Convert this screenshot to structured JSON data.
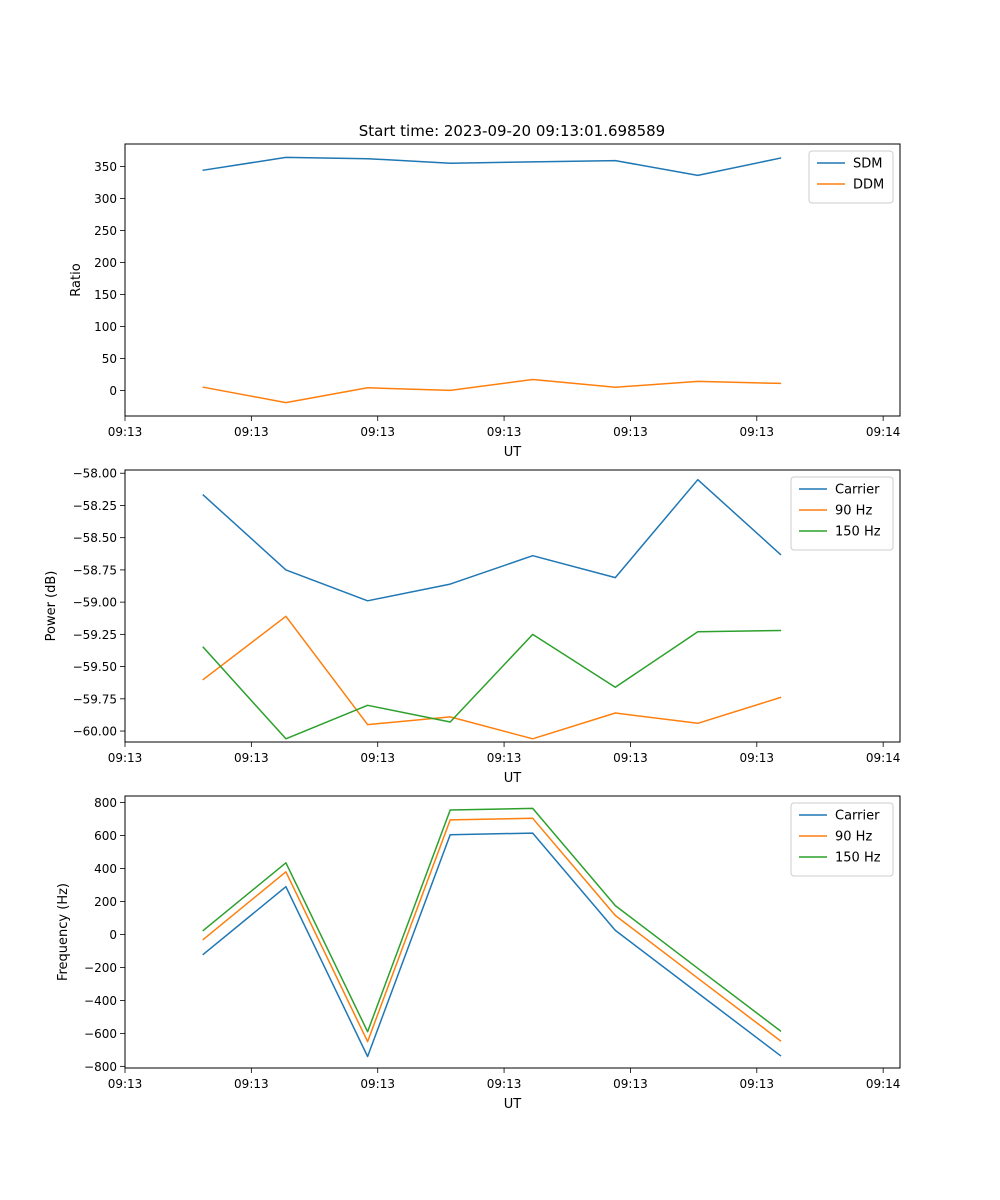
{
  "figure_title": "Start time: 2023-09-20 09:13:01.698589",
  "chart_data": [
    {
      "type": "line",
      "title": "Start time: 2023-09-20 09:13:01.698589",
      "xlabel": "UT",
      "ylabel": "Ratio",
      "xlim": [
        -0.2,
        9.0
      ],
      "ylim": [
        -40,
        385
      ],
      "x_ticks": [
        -0.2,
        1.3,
        2.8,
        4.3,
        5.8,
        7.3,
        8.8
      ],
      "x_tick_labels": [
        "09:13",
        "09:13",
        "09:13",
        "09:13",
        "09:13",
        "09:13",
        "09:14"
      ],
      "y_ticks": [
        0,
        50,
        100,
        150,
        200,
        250,
        300,
        350
      ],
      "y_tick_labels": [
        "0",
        "50",
        "100",
        "150",
        "200",
        "250",
        "300",
        "350"
      ],
      "x": [
        0.73,
        1.71,
        2.68,
        3.66,
        4.64,
        5.62,
        6.6,
        7.58
      ],
      "series": [
        {
          "name": "SDM",
          "color": "#1f77b4",
          "values": [
            344,
            364,
            362,
            355,
            357,
            359,
            336,
            363
          ]
        },
        {
          "name": "DDM",
          "color": "#ff7f0e",
          "values": [
            5,
            -19,
            4,
            0,
            17,
            5,
            14,
            11
          ]
        }
      ],
      "legend": "top-right"
    },
    {
      "type": "line",
      "title": "",
      "xlabel": "UT",
      "ylabel": "Power (dB)",
      "xlim": [
        -0.2,
        9.0
      ],
      "ylim": [
        -60.085,
        -57.975
      ],
      "x_ticks": [
        -0.2,
        1.3,
        2.8,
        4.3,
        5.8,
        7.3,
        8.8
      ],
      "x_tick_labels": [
        "09:13",
        "09:13",
        "09:13",
        "09:13",
        "09:13",
        "09:13",
        "09:14"
      ],
      "y_ticks": [
        -60.0,
        -59.75,
        -59.5,
        -59.25,
        -59.0,
        -58.75,
        -58.5,
        -58.25,
        -58.0
      ],
      "y_tick_labels": [
        "−60.00",
        "−59.75",
        "−59.50",
        "−59.25",
        "−59.00",
        "−58.75",
        "−58.50",
        "−58.25",
        "−58.00"
      ],
      "x": [
        0.73,
        1.71,
        2.68,
        3.66,
        4.64,
        5.62,
        6.6,
        7.58
      ],
      "series": [
        {
          "name": "Carrier",
          "color": "#1f77b4",
          "values": [
            -58.17,
            -58.75,
            -58.99,
            -58.86,
            -58.64,
            -58.81,
            -58.05,
            -58.63
          ]
        },
        {
          "name": "90 Hz",
          "color": "#ff7f0e",
          "values": [
            -59.6,
            -59.11,
            -59.95,
            -59.89,
            -60.06,
            -59.86,
            -59.94,
            -59.74
          ]
        },
        {
          "name": "150 Hz",
          "color": "#2ca02c",
          "values": [
            -59.35,
            -60.06,
            -59.8,
            -59.93,
            -59.25,
            -59.66,
            -59.23,
            -59.22
          ]
        }
      ],
      "legend": "top-right"
    },
    {
      "type": "line",
      "title": "",
      "xlabel": "UT",
      "ylabel": "Frequency (Hz)",
      "xlim": [
        -0.2,
        9.0
      ],
      "ylim": [
        -810,
        840
      ],
      "x_ticks": [
        -0.2,
        1.3,
        2.8,
        4.3,
        5.8,
        7.3,
        8.8
      ],
      "x_tick_labels": [
        "09:13",
        "09:13",
        "09:13",
        "09:13",
        "09:13",
        "09:13",
        "09:14"
      ],
      "y_ticks": [
        -800,
        -600,
        -400,
        -200,
        0,
        200,
        400,
        600,
        800
      ],
      "y_tick_labels": [
        "−800",
        "−600",
        "−400",
        "−200",
        "0",
        "200",
        "400",
        "600",
        "800"
      ],
      "x": [
        0.73,
        1.71,
        2.68,
        3.66,
        4.64,
        5.62,
        6.6,
        7.58
      ],
      "series": [
        {
          "name": "Carrier",
          "color": "#1f77b4",
          "values": [
            -120,
            290,
            -740,
            605,
            615,
            25,
            -355,
            -735
          ]
        },
        {
          "name": "90 Hz",
          "color": "#ff7f0e",
          "values": [
            -30,
            380,
            -650,
            695,
            705,
            115,
            -265,
            -645
          ]
        },
        {
          "name": "150 Hz",
          "color": "#2ca02c",
          "values": [
            25,
            435,
            -590,
            755,
            765,
            175,
            -205,
            -585
          ]
        }
      ],
      "legend": "top-right"
    }
  ]
}
